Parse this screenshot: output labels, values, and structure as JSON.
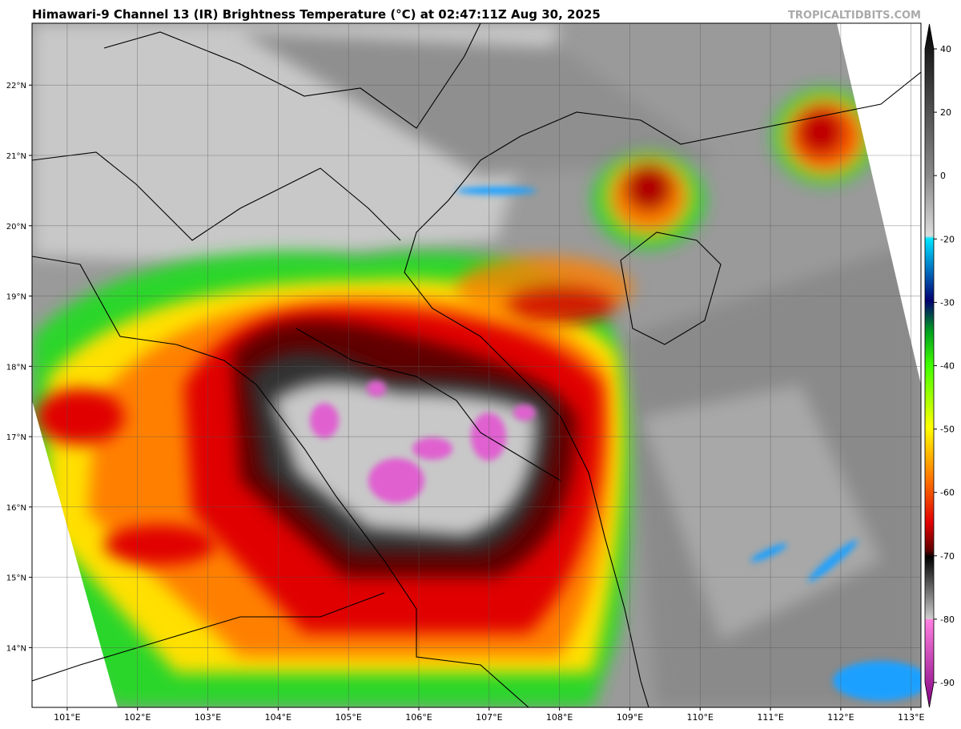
{
  "header": {
    "title": "Himawari-9 Channel 13 (IR) Brightness Temperature (°C) at 02:47:11Z Aug 30, 2025",
    "watermark": "TROPICALTIDBITS.COM"
  },
  "map": {
    "xlim": [
      100.5,
      113.14
    ],
    "ylim": [
      13.15,
      22.88
    ],
    "grid": true,
    "xticks": [
      {
        "value": 101,
        "label": "101°E"
      },
      {
        "value": 102,
        "label": "102°E"
      },
      {
        "value": 103,
        "label": "103°E"
      },
      {
        "value": 104,
        "label": "104°E"
      },
      {
        "value": 105,
        "label": "105°E"
      },
      {
        "value": 106,
        "label": "106°E"
      },
      {
        "value": 107,
        "label": "107°E"
      },
      {
        "value": 108,
        "label": "108°E"
      },
      {
        "value": 109,
        "label": "109°E"
      },
      {
        "value": 110,
        "label": "110°E"
      },
      {
        "value": 111,
        "label": "111°E"
      },
      {
        "value": 112,
        "label": "112°E"
      },
      {
        "value": 113,
        "label": "113°E"
      }
    ],
    "yticks": [
      {
        "value": 14,
        "label": "14°N"
      },
      {
        "value": 15,
        "label": "15°N"
      },
      {
        "value": 16,
        "label": "16°N"
      },
      {
        "value": 17,
        "label": "17°N"
      },
      {
        "value": 18,
        "label": "18°N"
      },
      {
        "value": 19,
        "label": "19°N"
      },
      {
        "value": 20,
        "label": "20°N"
      },
      {
        "value": 21,
        "label": "21°N"
      },
      {
        "value": 22,
        "label": "22°N"
      }
    ]
  },
  "colorbar": {
    "ticks": [
      40,
      20,
      0,
      -20,
      -30,
      -40,
      -50,
      -60,
      -70,
      -80,
      -90
    ]
  }
}
